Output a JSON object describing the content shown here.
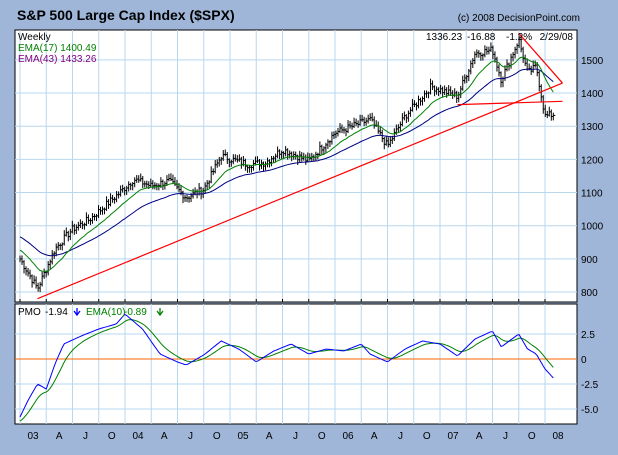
{
  "header": {
    "title": "S&P 500 Large Cap Index ($SPX)",
    "copyright": "(c) 2008 DecisionPoint.com",
    "period": "Weekly",
    "ema17_label": "EMA(17) 1400.49",
    "ema43_label": "EMA(43) 1433.26",
    "last_close": "1336.23",
    "change": "-16.88",
    "change_pct": "-1.2%",
    "date": "2/29/08"
  },
  "pmo_legend": {
    "pmo_label": "PMO",
    "pmo_value": "-1.94",
    "ema_label": "EMA(10)",
    "ema_value": "-0.89"
  },
  "colors": {
    "background": "#9fb6d8",
    "plot": "#ffffff",
    "grid": "#b7d7ef",
    "price": "#000000",
    "ema17": "#008000",
    "ema43": "#000080",
    "trendline": "#ff0000",
    "pmo": "#0000ff",
    "pmo_ema": "#008000",
    "zero_line": "#ff6600"
  },
  "chart_data": [
    {
      "type": "line",
      "title": "S&P 500 Large Cap Index ($SPX)",
      "frequency": "Weekly",
      "x_ticks": [
        "03",
        "A",
        "J",
        "O",
        "04",
        "A",
        "J",
        "O",
        "05",
        "A",
        "J",
        "O",
        "06",
        "A",
        "J",
        "O",
        "07",
        "A",
        "J",
        "O",
        "08"
      ],
      "y_ticks": [
        800,
        900,
        1000,
        1100,
        1200,
        1300,
        1400,
        1500
      ],
      "ylim": [
        770,
        1590
      ],
      "grid": true,
      "price_anchors": [
        {
          "date": "2003-01",
          "value": 900
        },
        {
          "date": "2003-03",
          "value": 810
        },
        {
          "date": "2003-05",
          "value": 930
        },
        {
          "date": "2003-07",
          "value": 990
        },
        {
          "date": "2003-09",
          "value": 1020
        },
        {
          "date": "2003-12",
          "value": 1090
        },
        {
          "date": "2004-02",
          "value": 1140
        },
        {
          "date": "2004-04",
          "value": 1120
        },
        {
          "date": "2004-06",
          "value": 1135
        },
        {
          "date": "2004-08",
          "value": 1085
        },
        {
          "date": "2004-10",
          "value": 1110
        },
        {
          "date": "2004-12",
          "value": 1210
        },
        {
          "date": "2005-03",
          "value": 1185
        },
        {
          "date": "2005-05",
          "value": 1190
        },
        {
          "date": "2005-07",
          "value": 1230
        },
        {
          "date": "2005-10",
          "value": 1195
        },
        {
          "date": "2006-01",
          "value": 1280
        },
        {
          "date": "2006-05",
          "value": 1320
        },
        {
          "date": "2006-07",
          "value": 1240
        },
        {
          "date": "2006-09",
          "value": 1330
        },
        {
          "date": "2006-12",
          "value": 1420
        },
        {
          "date": "2007-03",
          "value": 1390
        },
        {
          "date": "2007-05",
          "value": 1520
        },
        {
          "date": "2007-07",
          "value": 1530
        },
        {
          "date": "2007-08",
          "value": 1440
        },
        {
          "date": "2007-10",
          "value": 1560
        },
        {
          "date": "2007-11",
          "value": 1460
        },
        {
          "date": "2007-12",
          "value": 1480
        },
        {
          "date": "2008-01",
          "value": 1330
        },
        {
          "date": "2008-02",
          "value": 1336
        }
      ],
      "series": [
        {
          "name": "EMA(17)",
          "last": 1400.49
        },
        {
          "name": "EMA(43)",
          "last": 1433.26
        }
      ],
      "annotations": [
        {
          "type": "trendline",
          "from": {
            "date": "2003-03",
            "value": 780
          },
          "to": {
            "date": "2008-03",
            "value": 1430
          }
        },
        {
          "type": "trendline",
          "from": {
            "date": "2007-10",
            "value": 1580
          },
          "to": {
            "date": "2008-03",
            "value": 1430
          }
        },
        {
          "type": "horizontal",
          "from": {
            "date": "2007-03",
            "value": 1365
          },
          "to": {
            "date": "2008-03",
            "value": 1375
          }
        }
      ]
    },
    {
      "type": "line",
      "title": "PMO",
      "y_ticks": [
        2.5,
        0,
        -2.5,
        -5.0
      ],
      "y_tick_labels": [
        "2.5",
        "0",
        "-2.5",
        "-5.0"
      ],
      "ylim": [
        -6.5,
        5.5
      ],
      "grid": true,
      "series": [
        {
          "name": "PMO",
          "last": -1.94
        },
        {
          "name": "EMA(10)",
          "last": -0.89
        }
      ],
      "pmo_anchors": [
        {
          "date": "2003-01",
          "value": -5.8
        },
        {
          "date": "2003-02",
          "value": -4.0
        },
        {
          "date": "2003-03",
          "value": -2.5
        },
        {
          "date": "2003-04",
          "value": -3.0
        },
        {
          "date": "2003-05",
          "value": -0.5
        },
        {
          "date": "2003-06",
          "value": 1.5
        },
        {
          "date": "2003-08",
          "value": 2.3
        },
        {
          "date": "2003-10",
          "value": 3.0
        },
        {
          "date": "2003-12",
          "value": 3.5
        },
        {
          "date": "2004-01",
          "value": 4.5
        },
        {
          "date": "2004-03",
          "value": 3.0
        },
        {
          "date": "2004-05",
          "value": 0.5
        },
        {
          "date": "2004-07",
          "value": -0.3
        },
        {
          "date": "2004-08",
          "value": -0.6
        },
        {
          "date": "2004-10",
          "value": 0.4
        },
        {
          "date": "2004-12",
          "value": 1.8
        },
        {
          "date": "2005-02",
          "value": 1.0
        },
        {
          "date": "2005-04",
          "value": -0.3
        },
        {
          "date": "2005-06",
          "value": 0.8
        },
        {
          "date": "2005-08",
          "value": 1.5
        },
        {
          "date": "2005-10",
          "value": 0.5
        },
        {
          "date": "2005-12",
          "value": 1.0
        },
        {
          "date": "2006-02",
          "value": 0.8
        },
        {
          "date": "2006-04",
          "value": 1.5
        },
        {
          "date": "2006-05",
          "value": 0.5
        },
        {
          "date": "2006-07",
          "value": -0.3
        },
        {
          "date": "2006-09",
          "value": 1.0
        },
        {
          "date": "2006-11",
          "value": 1.8
        },
        {
          "date": "2007-01",
          "value": 1.5
        },
        {
          "date": "2007-03",
          "value": 0.3
        },
        {
          "date": "2007-05",
          "value": 2.0
        },
        {
          "date": "2007-07",
          "value": 2.8
        },
        {
          "date": "2007-08",
          "value": 1.2
        },
        {
          "date": "2007-10",
          "value": 2.5
        },
        {
          "date": "2007-11",
          "value": 1.0
        },
        {
          "date": "2007-12",
          "value": 0.5
        },
        {
          "date": "2008-01",
          "value": -1.0
        },
        {
          "date": "2008-02",
          "value": -1.94
        }
      ]
    }
  ]
}
